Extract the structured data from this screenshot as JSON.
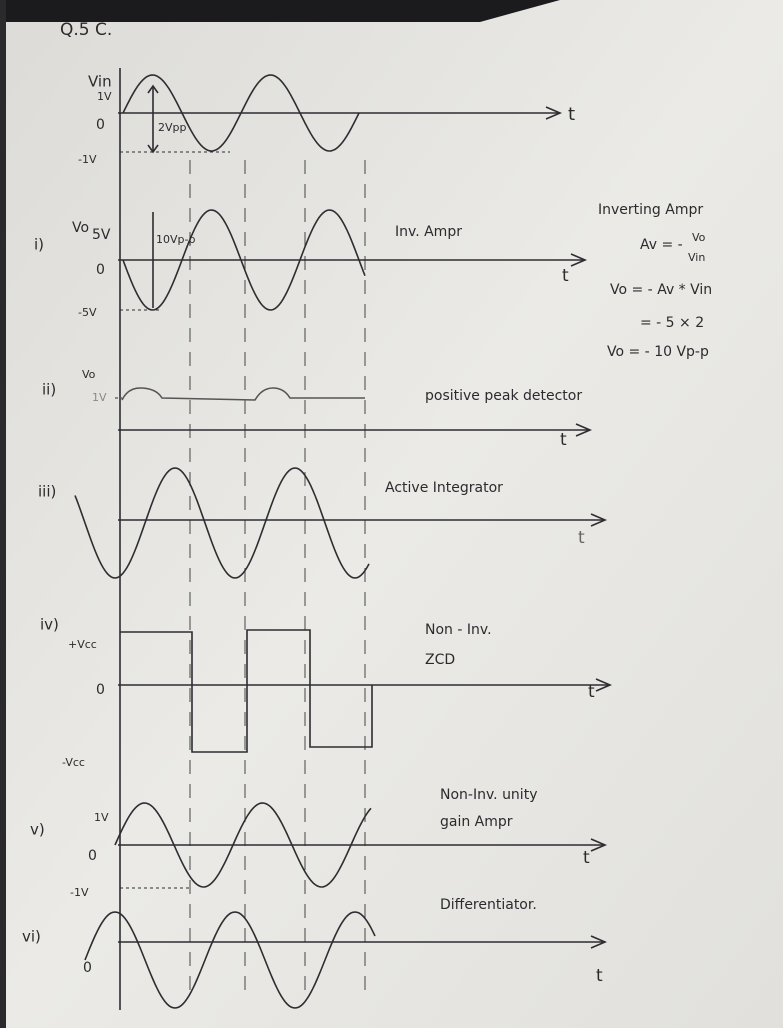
{
  "header": {
    "title": "Q.5 C."
  },
  "graphs": [
    {
      "axis_label": "Vin",
      "ticks": [
        "1V",
        "0",
        "-1V"
      ],
      "annotation": "2Vpp",
      "time": "t"
    },
    {
      "label": "i)",
      "axis_label": "Vo",
      "ticks": [
        "5V",
        "0",
        "-5V"
      ],
      "annotation": "10Vp-p",
      "title": "Inv. Ampr",
      "time": "t"
    },
    {
      "label": "ii)",
      "axis_label": "Vo",
      "ticks": [
        "1V"
      ],
      "title": "positive peak detector",
      "time": "t"
    },
    {
      "label": "iii)",
      "title": "Active Integrator",
      "time": "t"
    },
    {
      "label": "iv)",
      "ticks": [
        "+Vcc",
        "0",
        "-Vcc"
      ],
      "title": [
        "Non - Inv.",
        "ZCD"
      ],
      "time": "t"
    },
    {
      "label": "v)",
      "ticks": [
        "1V",
        "0",
        "-1V"
      ],
      "title": [
        "Non-Inv. unity",
        "gain Ampr"
      ],
      "time": "t"
    },
    {
      "label": "vi)",
      "ticks": [
        "0"
      ],
      "title": "Differentiator.",
      "time": "t"
    }
  ],
  "notes": {
    "title": "Inverting Ampr",
    "gain_lhs": "Av = -",
    "gain_num": "Vo",
    "gain_den": "Vin",
    "lines": [
      "Vo = - Av * Vin",
      "= - 5 × 2",
      "Vo = - 10 Vp-p"
    ]
  }
}
